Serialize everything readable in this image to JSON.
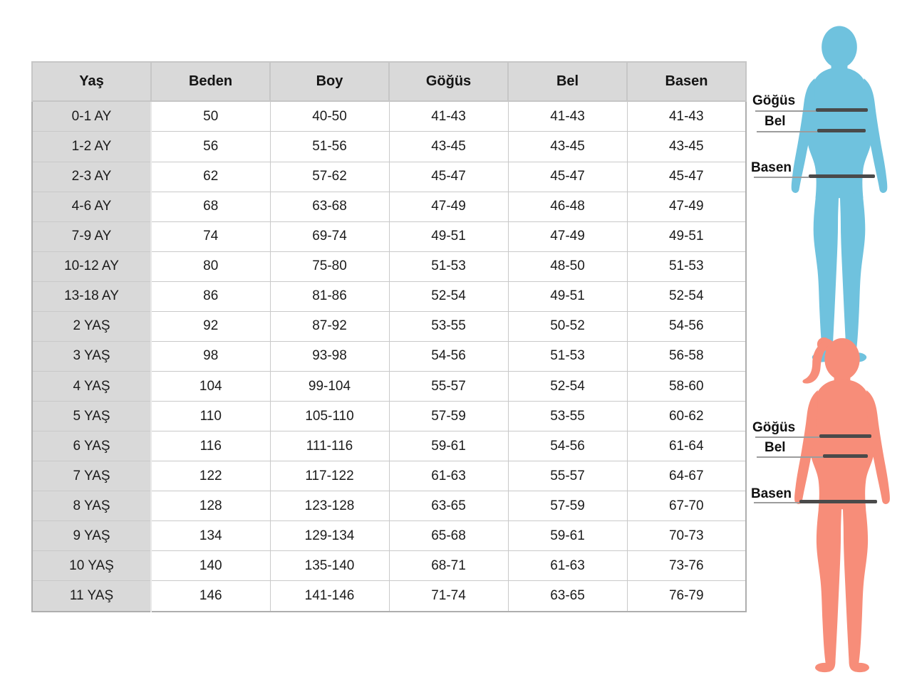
{
  "chart_data": {
    "type": "table",
    "columns": [
      "Yaş",
      "Beden",
      "Boy",
      "Göğüs",
      "Bel",
      "Basen"
    ],
    "rows": [
      [
        "0-1 AY",
        "50",
        "40-50",
        "41-43",
        "41-43",
        "41-43"
      ],
      [
        "1-2 AY",
        "56",
        "51-56",
        "43-45",
        "43-45",
        "43-45"
      ],
      [
        "2-3 AY",
        "62",
        "57-62",
        "45-47",
        "45-47",
        "45-47"
      ],
      [
        "4-6 AY",
        "68",
        "63-68",
        "47-49",
        "46-48",
        "47-49"
      ],
      [
        "7-9 AY",
        "74",
        "69-74",
        "49-51",
        "47-49",
        "49-51"
      ],
      [
        "10-12 AY",
        "80",
        "75-80",
        "51-53",
        "48-50",
        "51-53"
      ],
      [
        "13-18 AY",
        "86",
        "81-86",
        "52-54",
        "49-51",
        "52-54"
      ],
      [
        "2 YAŞ",
        "92",
        "87-92",
        "53-55",
        "50-52",
        "54-56"
      ],
      [
        "3 YAŞ",
        "98",
        "93-98",
        "54-56",
        "51-53",
        "56-58"
      ],
      [
        "4 YAŞ",
        "104",
        "99-104",
        "55-57",
        "52-54",
        "58-60"
      ],
      [
        "5 YAŞ",
        "110",
        "105-110",
        "57-59",
        "53-55",
        "60-62"
      ],
      [
        "6 YAŞ",
        "116",
        "111-116",
        "59-61",
        "54-56",
        "61-64"
      ],
      [
        "7 YAŞ",
        "122",
        "117-122",
        "61-63",
        "55-57",
        "64-67"
      ],
      [
        "8 YAŞ",
        "128",
        "123-128",
        "63-65",
        "57-59",
        "67-70"
      ],
      [
        "9 YAŞ",
        "134",
        "129-134",
        "65-68",
        "59-61",
        "70-73"
      ],
      [
        "10 YAŞ",
        "140",
        "135-140",
        "68-71",
        "61-63",
        "73-76"
      ],
      [
        "11 YAŞ",
        "146",
        "141-146",
        "71-74",
        "63-65",
        "76-79"
      ]
    ]
  },
  "figures": {
    "top": {
      "name": "blue-child-silhouette",
      "color": "#6fc2de",
      "measurements": [
        {
          "label": "Göğüs"
        },
        {
          "label": "Bel"
        },
        {
          "label": "Basen"
        }
      ]
    },
    "bottom": {
      "name": "pink-girl-silhouette",
      "color": "#f78d79",
      "measurements": [
        {
          "label": "Göğüs"
        },
        {
          "label": "Bel"
        },
        {
          "label": "Basen"
        }
      ]
    }
  },
  "colors": {
    "header_bg": "#d9d9d9",
    "grid_line": "#c9c9c9",
    "outer_border": "#aeaeae",
    "measure_line_thick": "#4a4a4a",
    "measure_line_thin": "#9c9c9c",
    "text": "#1b1b1b"
  }
}
